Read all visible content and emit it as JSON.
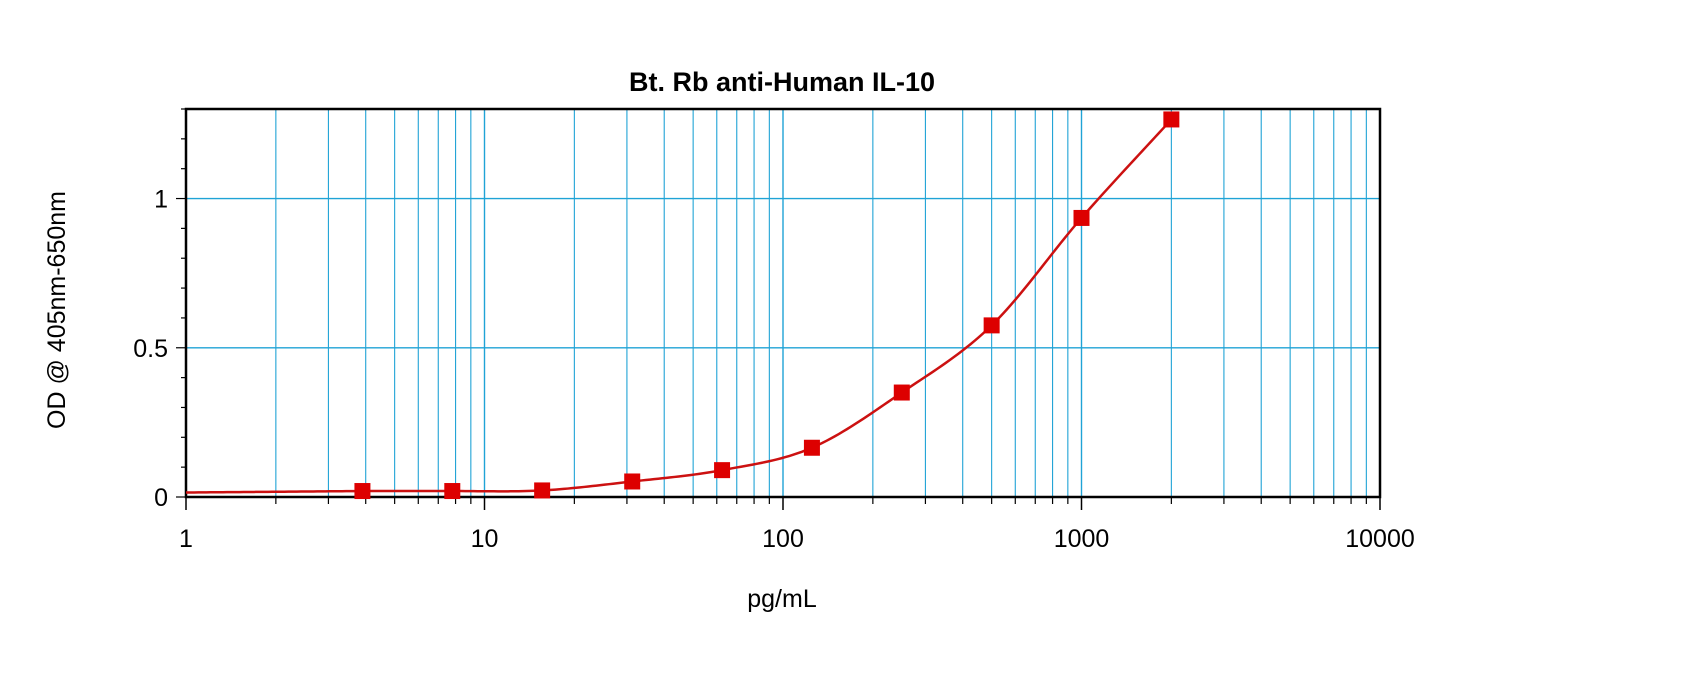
{
  "chart_data": {
    "type": "scatter",
    "title": "Bt. Rb anti-Human IL-10",
    "xlabel": "pg/mL",
    "ylabel": "OD @ 405nm-650nm",
    "xscale": "log",
    "xlim": [
      1,
      10000
    ],
    "ylim": [
      0,
      1.3
    ],
    "x_ticks": [
      "1",
      "10",
      "100",
      "1000",
      "10000"
    ],
    "y_ticks": [
      "0",
      "0.5",
      "1"
    ],
    "grid": true,
    "series": [
      {
        "x": [
          3.9,
          7.8,
          15.6,
          31.25,
          62.5,
          125,
          250,
          500,
          1000,
          2000
        ],
        "y": [
          0.02,
          0.02,
          0.022,
          0.052,
          0.09,
          0.165,
          0.35,
          0.575,
          0.935,
          1.265
        ]
      }
    ],
    "fit_curve": true,
    "colors": {
      "marker": "#dd0000",
      "curve": "#cc1111",
      "grid": "#1fa3d6",
      "frame": "#000000"
    }
  }
}
